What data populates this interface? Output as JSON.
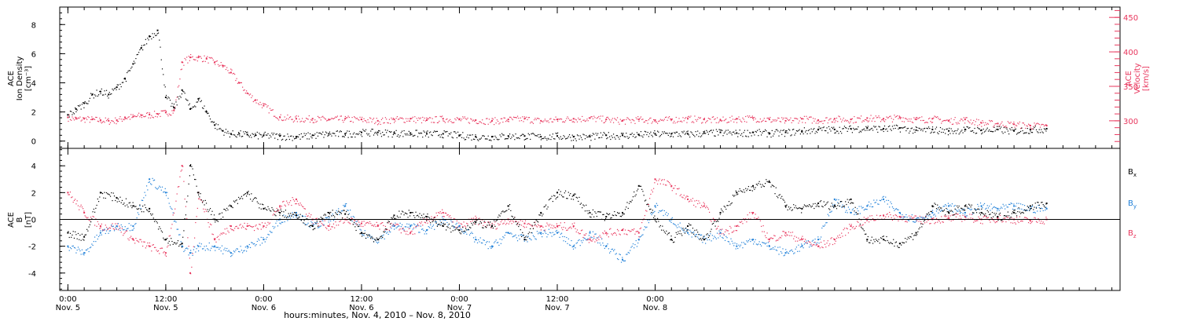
{
  "chart_data": [
    {
      "type": "scatter",
      "panel": "top",
      "title": "",
      "grid": false,
      "y_left": {
        "label_lines": [
          "ACE",
          "Ion Density",
          "[cm⁻³]"
        ],
        "range": [
          -0.5,
          9.2
        ],
        "ticks": [
          "0",
          "2",
          "4",
          "6",
          "8"
        ],
        "tick_values": [
          0,
          2,
          4,
          6,
          8
        ]
      },
      "y_right": {
        "label_lines": [
          "ACE",
          "Velocity",
          "[km/s]"
        ],
        "range": [
          260,
          465
        ],
        "ticks": [
          "300",
          "350",
          "400",
          "450"
        ],
        "tick_values": [
          300,
          350,
          400,
          450
        ]
      },
      "series": [
        {
          "axis": "left",
          "color": "#000000",
          "x_hours": [
            0,
            1,
            2,
            3,
            4,
            5,
            6,
            7,
            8,
            9,
            10,
            11,
            12,
            13,
            14,
            15,
            16,
            17,
            18,
            19,
            20,
            21,
            22,
            23,
            24,
            26,
            28,
            30,
            32,
            34,
            36,
            38,
            40,
            42,
            44,
            46,
            48,
            50,
            52,
            54,
            56,
            58,
            60,
            62,
            64,
            66,
            68,
            70,
            72,
            74,
            76,
            78,
            80,
            82,
            84,
            86,
            88,
            90,
            92,
            94,
            96,
            98,
            100,
            102,
            104,
            106,
            108,
            110,
            112,
            114,
            116,
            118,
            120
          ],
          "y": [
            1.8,
            2.2,
            2.6,
            3.2,
            3.4,
            3.2,
            3.7,
            4.3,
            5.3,
            6.4,
            7.2,
            7.6,
            3.0,
            2.3,
            3.5,
            2.2,
            2.9,
            2.0,
            1.1,
            0.7,
            0.5,
            0.5,
            0.45,
            0.4,
            0.4,
            0.35,
            0.3,
            0.4,
            0.5,
            0.5,
            0.6,
            0.6,
            0.55,
            0.55,
            0.5,
            0.5,
            0.4,
            0.3,
            0.3,
            0.35,
            0.35,
            0.3,
            0.35,
            0.3,
            0.3,
            0.4,
            0.4,
            0.45,
            0.5,
            0.5,
            0.5,
            0.55,
            0.6,
            0.55,
            0.6,
            0.55,
            0.6,
            0.7,
            0.8,
            0.8,
            0.85,
            0.9,
            0.85,
            0.9,
            0.75,
            0.8,
            0.7,
            0.8,
            0.75,
            0.8,
            0.7,
            0.8,
            0.85
          ]
        },
        {
          "axis": "right",
          "color": "#e8365d",
          "x_hours": [
            0,
            1,
            2,
            3,
            4,
            5,
            6,
            7,
            8,
            9,
            10,
            11,
            12,
            13,
            14,
            15,
            16,
            17,
            18,
            19,
            20,
            21,
            22,
            23,
            24,
            26,
            28,
            30,
            32,
            34,
            36,
            38,
            40,
            42,
            44,
            46,
            48,
            50,
            52,
            54,
            56,
            58,
            60,
            62,
            64,
            66,
            68,
            70,
            72,
            74,
            76,
            78,
            80,
            82,
            84,
            86,
            88,
            90,
            92,
            94,
            96,
            98,
            100,
            102,
            104,
            106,
            108,
            110,
            112,
            114,
            116,
            118,
            120
          ],
          "y": [
            305,
            303,
            303,
            302,
            301,
            300,
            301,
            305,
            306,
            308,
            309,
            310,
            312,
            315,
            385,
            392,
            392,
            390,
            385,
            380,
            370,
            355,
            340,
            330,
            322,
            305,
            303,
            303,
            302,
            303,
            302,
            300,
            302,
            303,
            301,
            303,
            302,
            301,
            300,
            302,
            303,
            300,
            302,
            303,
            304,
            302,
            300,
            302,
            301,
            302,
            303,
            302,
            301,
            303,
            304,
            302,
            300,
            303,
            301,
            303,
            302,
            304,
            303,
            305,
            302,
            303,
            300,
            302,
            297,
            296,
            295,
            293,
            293
          ]
        }
      ]
    },
    {
      "type": "scatter",
      "panel": "bottom",
      "title": "",
      "grid": false,
      "zero_line": true,
      "y_left": {
        "label_lines": [
          "ACE",
          "B",
          "[nT]"
        ],
        "range": [
          -5.3,
          5.3
        ],
        "ticks": [
          "-4",
          "-2",
          "0",
          "2",
          "4"
        ],
        "tick_values": [
          -4,
          -2,
          0,
          2,
          4
        ]
      },
      "legend": {
        "placement": "right",
        "entries": [
          {
            "base": "B",
            "sub": "x",
            "color": "#000000"
          },
          {
            "base": "B",
            "sub": "y",
            "color": "#1e7fd8"
          },
          {
            "base": "B",
            "sub": "z",
            "color": "#e8365d"
          }
        ]
      },
      "series": [
        {
          "name": "Bx",
          "color": "#000000",
          "x_hours": [
            0,
            2,
            4,
            6,
            8,
            10,
            12,
            14,
            15,
            16,
            18,
            20,
            22,
            24,
            26,
            28,
            30,
            32,
            34,
            36,
            38,
            40,
            42,
            44,
            46,
            48,
            50,
            52,
            54,
            56,
            58,
            60,
            62,
            64,
            66,
            68,
            70,
            72,
            74,
            76,
            78,
            80,
            82,
            84,
            86,
            88,
            90,
            92,
            94,
            96,
            98,
            100,
            102,
            104,
            106,
            108,
            110,
            112,
            114,
            116,
            118,
            120
          ],
          "y": [
            -1.0,
            -1.3,
            2.0,
            1.6,
            1.0,
            0.8,
            -1.5,
            -1.8,
            4.0,
            2.0,
            0.0,
            1.0,
            2.0,
            0.8,
            0.5,
            0.3,
            -0.5,
            0.5,
            0.4,
            -1.0,
            -1.5,
            0.3,
            0.5,
            0.2,
            -0.5,
            -0.8,
            -0.2,
            -0.5,
            1.0,
            -1.5,
            0.5,
            2.0,
            1.8,
            0.5,
            0.2,
            0.5,
            2.5,
            0.0,
            -1.5,
            -0.5,
            -1.5,
            0.5,
            2.0,
            2.5,
            2.8,
            1.0,
            0.8,
            1.2,
            1.0,
            1.5,
            -1.5,
            -1.5,
            -1.8,
            -1.0,
            1.0,
            0.5,
            1.0,
            0.5,
            0.2,
            0.5,
            1.0,
            1.2
          ]
        },
        {
          "name": "By",
          "color": "#1e7fd8",
          "x_hours": [
            0,
            2,
            4,
            6,
            8,
            10,
            12,
            14,
            15,
            16,
            18,
            20,
            22,
            24,
            26,
            28,
            30,
            32,
            34,
            36,
            38,
            40,
            42,
            44,
            46,
            48,
            50,
            52,
            54,
            56,
            58,
            60,
            62,
            64,
            66,
            68,
            70,
            72,
            74,
            76,
            78,
            80,
            82,
            84,
            86,
            88,
            90,
            92,
            94,
            96,
            98,
            100,
            102,
            104,
            106,
            108,
            110,
            112,
            114,
            116,
            118,
            120
          ],
          "y": [
            -2.0,
            -2.5,
            -1.0,
            -0.5,
            -0.5,
            3.0,
            2.0,
            -2.0,
            -2.5,
            -2.0,
            -2.0,
            -2.5,
            -2.0,
            -1.5,
            0.0,
            0.5,
            -0.5,
            0.0,
            1.0,
            -1.0,
            -1.5,
            -0.5,
            -0.5,
            -0.8,
            0.0,
            -0.5,
            -1.5,
            -2.0,
            -1.0,
            -1.5,
            -1.0,
            -1.0,
            -2.0,
            -1.0,
            -2.0,
            -3.0,
            -1.5,
            1.0,
            0.0,
            -1.0,
            -1.5,
            -1.0,
            -2.0,
            -1.5,
            -2.0,
            -2.5,
            -2.0,
            -1.5,
            1.5,
            0.5,
            1.0,
            1.5,
            0.5,
            0.0,
            0.5,
            1.0,
            0.5,
            1.0,
            0.8,
            1.0,
            0.8,
            0.8
          ]
        },
        {
          "name": "Bz",
          "color": "#e8365d",
          "x_hours": [
            0,
            2,
            4,
            6,
            8,
            10,
            12,
            14,
            15,
            16,
            18,
            20,
            22,
            24,
            26,
            28,
            30,
            32,
            34,
            36,
            38,
            40,
            42,
            44,
            46,
            48,
            50,
            52,
            54,
            56,
            58,
            60,
            62,
            64,
            66,
            68,
            70,
            72,
            74,
            76,
            78,
            80,
            82,
            84,
            86,
            88,
            90,
            92,
            94,
            96,
            98,
            100,
            102,
            104,
            106,
            108,
            110,
            112,
            114,
            116,
            118,
            120
          ],
          "y": [
            2.0,
            0.5,
            -0.5,
            -0.5,
            -1.5,
            -2.0,
            -2.5,
            4.0,
            -4.0,
            2.0,
            -1.5,
            -0.5,
            -0.5,
            -0.5,
            1.0,
            1.5,
            0.0,
            -0.5,
            0.0,
            -0.3,
            -0.5,
            -0.5,
            -1.0,
            0.0,
            0.5,
            -0.5,
            0.0,
            -0.5,
            0.0,
            -0.3,
            -0.5,
            -0.5,
            -0.5,
            -1.5,
            -1.0,
            -0.8,
            -1.0,
            3.0,
            2.5,
            1.5,
            1.0,
            -1.0,
            -0.5,
            0.5,
            -1.5,
            -1.0,
            -1.5,
            -2.0,
            -1.5,
            -0.5,
            0.0,
            0.3,
            0.2,
            0.0,
            0.0,
            0.1,
            0.2,
            0.0,
            0.1,
            0.0,
            -0.1,
            0.0
          ]
        }
      ]
    }
  ],
  "x_axis": {
    "range_hours": [
      -1,
      129
    ],
    "major_ticks": [
      {
        "hour": 0,
        "time": "0:00",
        "day": "Nov. 5"
      },
      {
        "hour": 12,
        "time": "12:00",
        "day": "Nov. 5"
      },
      {
        "hour": 24,
        "time": "0:00",
        "day": "Nov. 6"
      },
      {
        "hour": 36,
        "time": "12:00",
        "day": "Nov. 6"
      },
      {
        "hour": 48,
        "time": "0:00",
        "day": "Nov. 7"
      },
      {
        "hour": 60,
        "time": "12:00",
        "day": "Nov. 7"
      },
      {
        "hour": 72,
        "time": "0:00",
        "day": "Nov. 8"
      }
    ],
    "caption": "hours:minutes, Nov. 4, 2010 – Nov. 8, 2010"
  }
}
